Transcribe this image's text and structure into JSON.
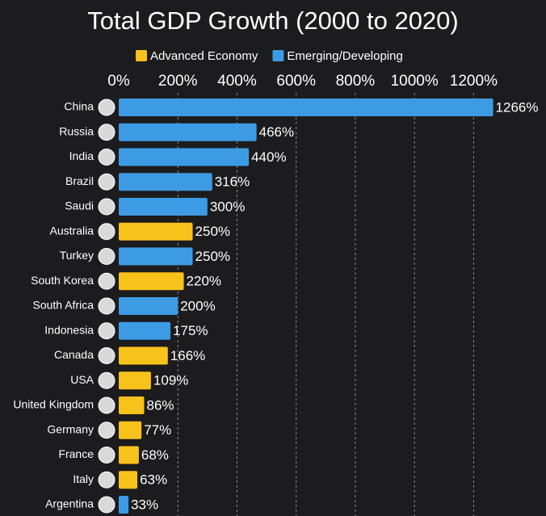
{
  "chart_data": {
    "type": "bar",
    "orientation": "horizontal",
    "title": "Total GDP Growth (2000 to 2020)",
    "categories": [
      "China",
      "Russia",
      "India",
      "Brazil",
      "Saudi",
      "Australia",
      "Turkey",
      "South Korea",
      "South Africa",
      "Indonesia",
      "Canada",
      "USA",
      "United Kingdom",
      "Germany",
      "France",
      "Italy",
      "Argentina"
    ],
    "series": [
      {
        "name": "Advanced Economy",
        "color": "#f7c21b",
        "values": [
          null,
          null,
          null,
          null,
          null,
          250,
          null,
          220,
          null,
          null,
          166,
          109,
          86,
          77,
          68,
          63,
          null
        ],
        "value_labels": [
          null,
          null,
          null,
          null,
          null,
          "250%",
          null,
          "220%",
          null,
          null,
          "166%",
          "109%",
          "86%",
          "77%",
          "68%",
          "63%",
          null
        ]
      },
      {
        "name": "Emerging/Developing",
        "color": "#3d9be3",
        "values": [
          1266,
          466,
          440,
          316,
          300,
          null,
          250,
          null,
          200,
          175,
          null,
          null,
          null,
          null,
          null,
          null,
          33
        ],
        "value_labels": [
          "1266%",
          "466%",
          "440%",
          "316%",
          "300%",
          null,
          "250%",
          null,
          "200%",
          "175%",
          null,
          null,
          null,
          null,
          null,
          null,
          "33%"
        ]
      }
    ],
    "xlim": [
      0,
      1300
    ],
    "xticks": [
      {
        "value": 0,
        "label": "0%"
      },
      {
        "value": 200,
        "label": "200%"
      },
      {
        "value": 400,
        "label": "400%"
      },
      {
        "value": 600,
        "label": "600%"
      },
      {
        "value": 800,
        "label": "800%"
      },
      {
        "value": 1000,
        "label": "1000%"
      },
      {
        "value": 1200,
        "label": "1200%"
      }
    ],
    "grid": true
  }
}
